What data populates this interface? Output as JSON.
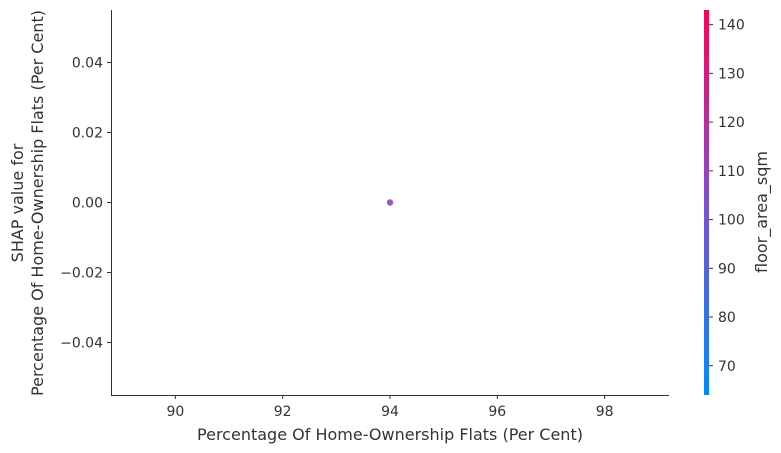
{
  "chart_data": {
    "type": "scatter",
    "title": "",
    "xlabel": "Percentage Of Home-Ownership Flats (Per Cent)",
    "ylabel_lines": [
      "SHAP value for",
      "Percentage Of Home-Ownership Flats (Per Cent)"
    ],
    "xlim": [
      88.8,
      99.2
    ],
    "ylim": [
      -0.055,
      0.055
    ],
    "xticks": [
      90,
      92,
      94,
      96,
      98
    ],
    "xtick_labels": [
      "90",
      "92",
      "94",
      "96",
      "98"
    ],
    "yticks": [
      0.04,
      0.02,
      0.0,
      -0.02,
      -0.04
    ],
    "ytick_labels": [
      "0.04",
      "0.02",
      "0.00",
      "−0.02",
      "−0.04"
    ],
    "points": [
      {
        "x": 94.0,
        "y": 0.0,
        "color_value": 110
      }
    ],
    "colorbar": {
      "label": "floor_area_sqm",
      "range": [
        64,
        143
      ],
      "ticks": [
        70,
        80,
        90,
        100,
        110,
        120,
        130,
        140
      ],
      "tick_labels": [
        "70",
        "80",
        "90",
        "100",
        "110",
        "120",
        "130",
        "140"
      ],
      "color_low": "#008afb",
      "color_high": "#ff0052"
    },
    "grid": false
  }
}
